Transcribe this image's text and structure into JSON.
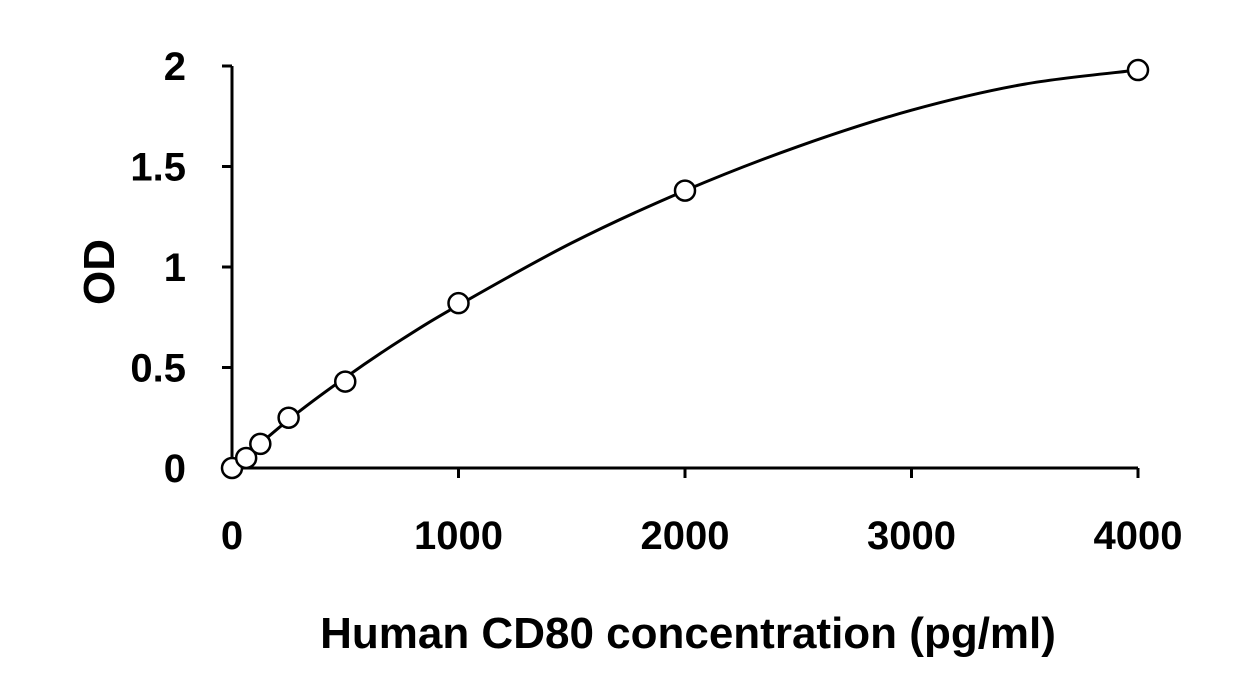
{
  "chart_data": {
    "type": "scatter",
    "title": "",
    "xlabel": "Human CD80 concentration (pg/ml)",
    "ylabel": "OD",
    "xlim": [
      0,
      4000
    ],
    "ylim": [
      0,
      2
    ],
    "x_ticks": [
      0,
      1000,
      2000,
      3000,
      4000
    ],
    "x_tick_labels": [
      "0",
      "1000",
      "2000",
      "3000",
      "4000"
    ],
    "y_ticks": [
      0,
      0.5,
      1,
      1.5,
      2
    ],
    "y_tick_labels": [
      "0",
      "0.5",
      "1",
      "1.5",
      "2"
    ],
    "grid": false,
    "legend": "none",
    "series": [
      {
        "marker": "open-circle",
        "x": [
          0,
          62.5,
          125,
          250,
          500,
          1000,
          2000,
          4000
        ],
        "y": [
          0.0,
          0.05,
          0.12,
          0.25,
          0.43,
          0.82,
          1.38,
          1.98
        ]
      }
    ],
    "fit_curve": {
      "style": "smooth-line",
      "x": [
        0,
        250,
        500,
        750,
        1000,
        1500,
        2000,
        2500,
        3000,
        3500,
        4000
      ],
      "y": [
        0.0,
        0.24,
        0.45,
        0.64,
        0.81,
        1.12,
        1.38,
        1.6,
        1.78,
        1.91,
        1.98
      ]
    }
  }
}
